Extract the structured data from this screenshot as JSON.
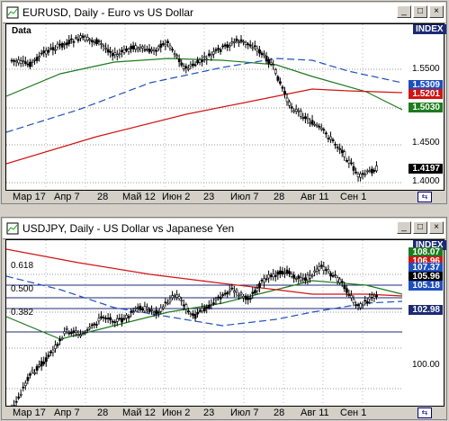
{
  "top": {
    "title": "EURUSD, Daily - Euro vs US Dollar",
    "data_label": "Data",
    "index_label": "INDEX",
    "y_ticks": [
      "1.5500",
      "1.5000",
      "1.4500",
      "1.4000"
    ],
    "tags": [
      {
        "text": "1.5309",
        "bg": "#1f4fbf",
        "fg": "#ffffff"
      },
      {
        "text": "1.5201",
        "bg": "#d21414",
        "fg": "#ffffff"
      },
      {
        "text": "1.5030",
        "bg": "#1e7a1e",
        "fg": "#ffffff"
      },
      {
        "text": "1.4197",
        "bg": "#000000",
        "fg": "#ffffff"
      }
    ],
    "x_labels": [
      "Мар 17",
      "Апр 7",
      "28",
      "Май 12",
      "Июн 2",
      "23",
      "Июл 7",
      "28",
      "Авг 11",
      "Сен 1"
    ]
  },
  "bottom": {
    "title": "USDJPY, Daily - US Dollar vs Japanese Yen",
    "index_label": "INDEX",
    "y_ticks": [
      "110.00",
      "100.00"
    ],
    "fib_labels": [
      "0.618",
      "0.500",
      "0.382"
    ],
    "tags": [
      {
        "text": "108.07",
        "bg": "#1e7a1e",
        "fg": "#ffffff"
      },
      {
        "text": "106.96",
        "bg": "#d21414",
        "fg": "#ffffff"
      },
      {
        "text": "107.37",
        "bg": "#1f4fbf",
        "fg": "#ffffff"
      },
      {
        "text": "105.96",
        "bg": "#000000",
        "fg": "#ffffff"
      },
      {
        "text": "105.18",
        "bg": "#1f4fbf",
        "fg": "#ffffff"
      },
      {
        "text": "102.98",
        "bg": "#1c2a74",
        "fg": "#ffffff"
      }
    ],
    "x_labels": [
      "Мар 17",
      "Апр 7",
      "28",
      "Май 12",
      "Июн 2",
      "23",
      "Июл 7",
      "28",
      "Авг 11",
      "Сен 1"
    ]
  },
  "window_buttons": {
    "minimize": "_",
    "maximize": "□",
    "close": "×"
  },
  "icons": {
    "app": "chart-app-icon",
    "corner": "scroll-toggle-icon"
  },
  "colors": {
    "up_candle": "#ffffff",
    "down_candle": "#000000",
    "ma_fast": "#1e7a1e",
    "ma_mid": "#1f4fbf",
    "ma_slow": "#d21414"
  }
}
